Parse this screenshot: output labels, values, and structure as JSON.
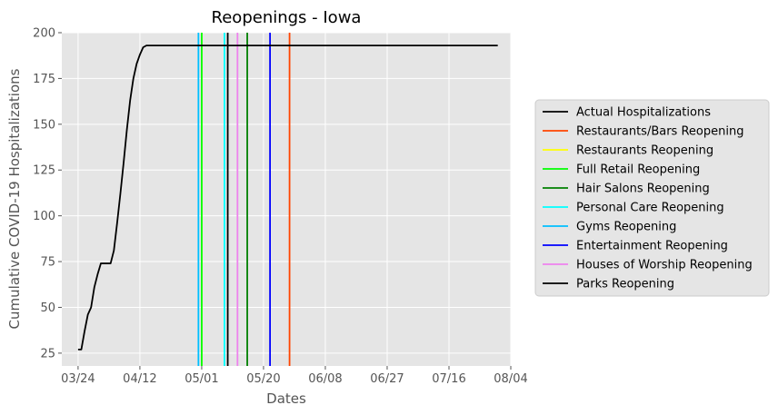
{
  "chart_data": {
    "type": "line",
    "title": "Reopenings - Iowa",
    "xlabel": "Dates",
    "ylabel": "Cumulative COVID-19 Hospitalizations",
    "x_type": "date",
    "xlim": [
      "2020-03-19",
      "2020-08-04"
    ],
    "ylim": [
      18,
      200
    ],
    "x_ticks": [
      {
        "date": "2020-03-24",
        "label": "03/24"
      },
      {
        "date": "2020-04-12",
        "label": "04/12"
      },
      {
        "date": "2020-05-01",
        "label": "05/01"
      },
      {
        "date": "2020-05-20",
        "label": "05/20"
      },
      {
        "date": "2020-06-08",
        "label": "06/08"
      },
      {
        "date": "2020-06-27",
        "label": "06/27"
      },
      {
        "date": "2020-07-16",
        "label": "07/16"
      },
      {
        "date": "2020-08-04",
        "label": "08/04"
      }
    ],
    "y_ticks": [
      25,
      50,
      75,
      100,
      125,
      150,
      175,
      200
    ],
    "grid": true,
    "legend_position": "right",
    "series": [
      {
        "name": "Actual Hospitalizations",
        "color": "#000000",
        "x": [
          "2020-03-24",
          "2020-03-25",
          "2020-03-26",
          "2020-03-27",
          "2020-03-28",
          "2020-03-29",
          "2020-03-30",
          "2020-03-31",
          "2020-04-01",
          "2020-04-02",
          "2020-04-03",
          "2020-04-04",
          "2020-04-05",
          "2020-04-06",
          "2020-04-07",
          "2020-04-08",
          "2020-04-09",
          "2020-04-10",
          "2020-04-11",
          "2020-04-12",
          "2020-04-13",
          "2020-04-14",
          "2020-04-15",
          "2020-04-16",
          "2020-04-17",
          "2020-04-18",
          "2020-07-31"
        ],
        "y": [
          27,
          27,
          37,
          46,
          50,
          61,
          68,
          74,
          74,
          74,
          74,
          81,
          96,
          112,
          129,
          147,
          163,
          175,
          183,
          188,
          192,
          193,
          193,
          193,
          193,
          193,
          193
        ]
      }
    ],
    "vlines": [
      {
        "name": "Restaurants/Bars Reopening",
        "date": "2020-05-28",
        "color": "#FF4500"
      },
      {
        "name": "Restaurants Reopening",
        "date": "2020-05-01",
        "color": "#FFFF00"
      },
      {
        "name": "Full Retail Reopening",
        "date": "2020-05-01",
        "color": "#00FF00"
      },
      {
        "name": "Hair Salons Reopening",
        "date": "2020-05-15",
        "color": "#008000"
      },
      {
        "name": "Personal Care Reopening",
        "date": "2020-05-08",
        "color": "#00FFFF"
      },
      {
        "name": "Gyms Reopening",
        "date": "2020-04-30",
        "color": "#00BFFF"
      },
      {
        "name": "Entertainment Reopening",
        "date": "2020-05-22",
        "color": "#0000FF"
      },
      {
        "name": "Houses of Worship Reopening",
        "date": "2020-05-12",
        "color": "#EE82EE"
      },
      {
        "name": "Parks Reopening",
        "date": "2020-05-09",
        "color": "#000000"
      }
    ]
  }
}
